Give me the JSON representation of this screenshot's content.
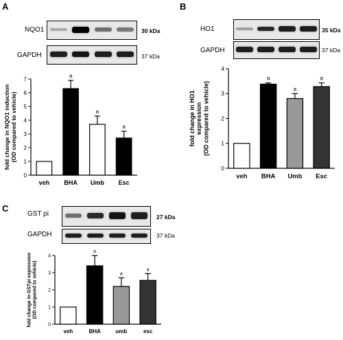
{
  "panels": [
    {
      "letter": "A",
      "blot_top": {
        "label": "NQO1",
        "kda": "30 kDa",
        "band_intensity": [
          0.15,
          1.0,
          0.45,
          0.4
        ]
      },
      "blot_bottom": {
        "label": "GAPDH",
        "kda": "37 kDa",
        "band_intensity": [
          0.85,
          0.9,
          0.85,
          0.85
        ]
      }
    },
    {
      "letter": "B",
      "blot_top": {
        "label": "HO1",
        "kda": "35 kDa",
        "band_intensity": [
          0.2,
          0.8,
          0.85,
          0.85
        ]
      },
      "blot_bottom": {
        "label": "GAPDH",
        "kda": "37 kDa",
        "band_intensity": [
          0.85,
          0.85,
          0.85,
          0.85
        ]
      }
    },
    {
      "letter": "C",
      "blot_top": {
        "label": "GST pi",
        "kda": "27 kDa",
        "band_intensity": [
          0.45,
          0.8,
          0.9,
          0.85
        ]
      },
      "blot_bottom": {
        "label": "GAPDH",
        "kda": "37 kDa",
        "band_intensity": [
          0.85,
          0.85,
          0.85,
          0.85
        ]
      }
    }
  ],
  "chart_data": [
    {
      "type": "bar",
      "title": "",
      "ylabel": "fold change in NQO1 induction (OD compared to vehicle)",
      "categories": [
        "veh",
        "BHA",
        "Umb",
        "Esc"
      ],
      "values": [
        1.0,
        6.3,
        3.7,
        2.7
      ],
      "errors": [
        0,
        0.6,
        0.6,
        0.5
      ],
      "annotations": [
        "",
        "a",
        "a",
        "a"
      ],
      "bar_colors": [
        "#ffffff",
        "#000000",
        "#ffffff",
        "#000000"
      ],
      "ylim": [
        0,
        7
      ],
      "yticks": [
        0,
        1,
        2,
        3,
        4,
        5,
        6,
        7
      ]
    },
    {
      "type": "bar",
      "title": "",
      "ylabel": "fold change in HO1 expression (OD compared to vehicle)",
      "categories": [
        "veh",
        "BHA",
        "Umb",
        "Esc"
      ],
      "values": [
        1.0,
        3.38,
        2.8,
        3.28
      ],
      "errors": [
        0,
        0.05,
        0.2,
        0.15
      ],
      "annotations": [
        "",
        "a",
        "a",
        "a"
      ],
      "bar_colors": [
        "#ffffff",
        "#000000",
        "#999999",
        "#333333"
      ],
      "ylim": [
        0,
        4
      ],
      "yticks": [
        0,
        1,
        2,
        3,
        4
      ]
    },
    {
      "type": "bar",
      "title": "",
      "ylabel": "fold change in GSTpi expression (OD compared to vehicle)",
      "categories": [
        "veh",
        "BHA",
        "umb",
        "esc"
      ],
      "values": [
        1.0,
        3.4,
        2.2,
        2.55
      ],
      "errors": [
        0,
        0.6,
        0.5,
        0.4
      ],
      "annotations": [
        "",
        "a",
        "a",
        "a"
      ],
      "bar_colors": [
        "#ffffff",
        "#000000",
        "#999999",
        "#333333"
      ],
      "ylim": [
        0,
        4
      ],
      "yticks": [
        0,
        1,
        2,
        3,
        4
      ]
    }
  ]
}
